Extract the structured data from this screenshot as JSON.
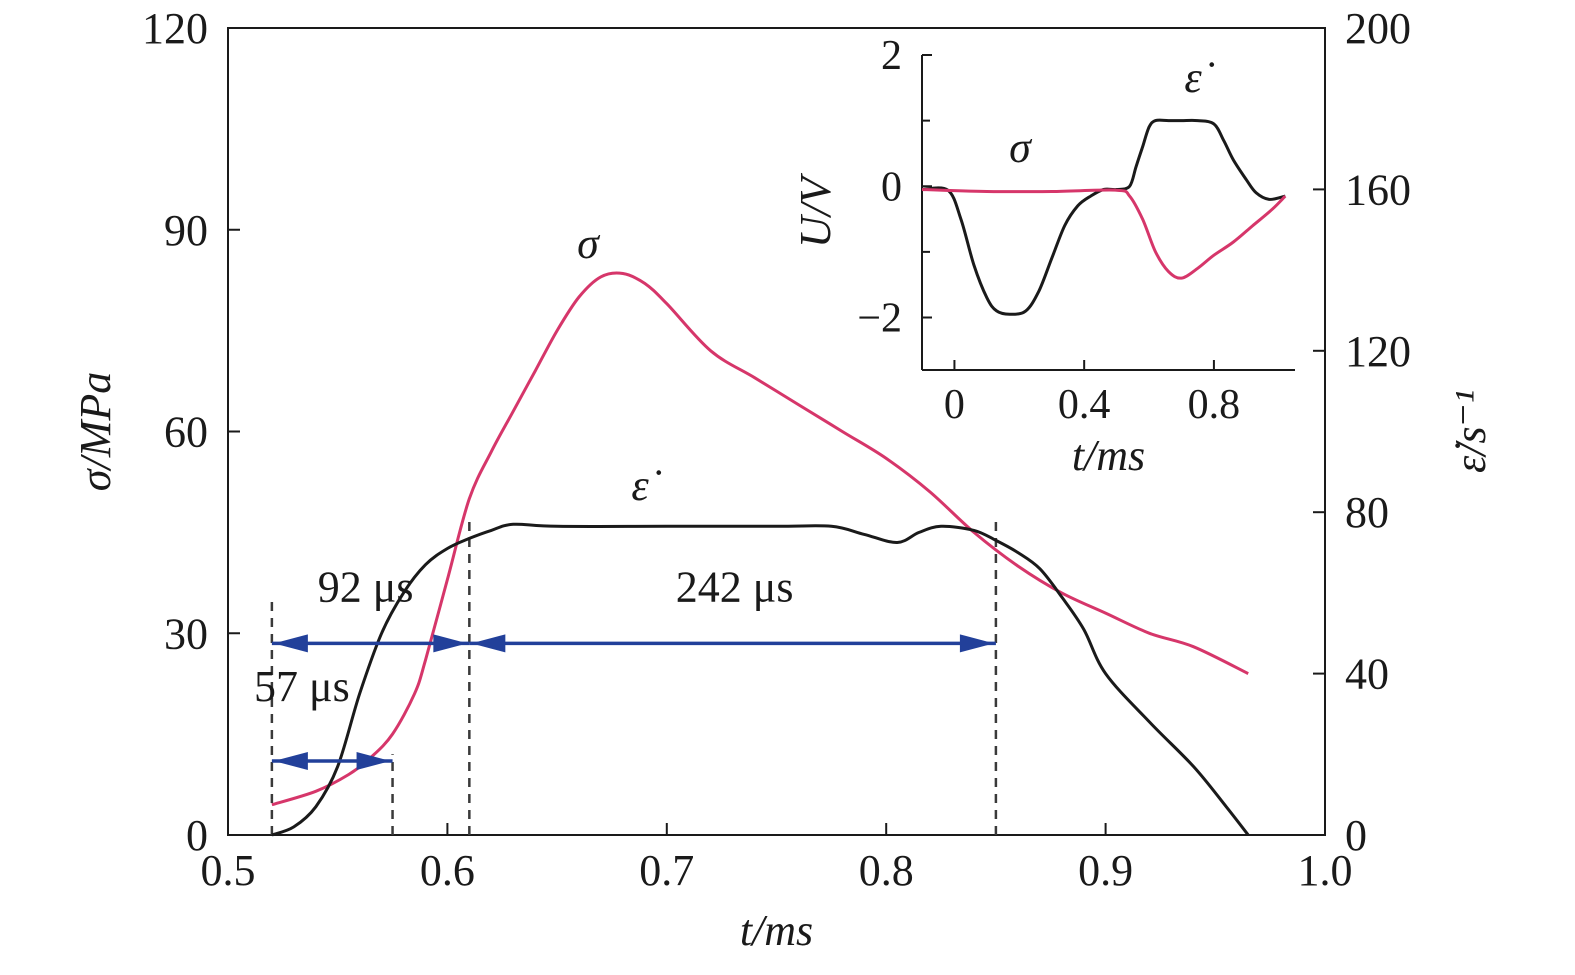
{
  "chart_data": [
    {
      "type": "line",
      "xlabel": "t/ms",
      "ylabel_left": "σ/MPa",
      "ylabel_right": "ε̇/s⁻¹",
      "xlim": [
        0.5,
        1.0
      ],
      "ylim_left": [
        0,
        120
      ],
      "ylim_right": [
        0,
        200
      ],
      "x_ticks": [
        "0.5",
        "0.6",
        "0.7",
        "0.8",
        "0.9",
        "1.0"
      ],
      "y_left_ticks": [
        "0",
        "30",
        "60",
        "90",
        "120"
      ],
      "y_right_ticks": [
        "0",
        "40",
        "80",
        "120",
        "160",
        "200"
      ],
      "colors": {
        "sigma": "#d6366a",
        "strain_rate": "#1a1a1a",
        "annotation": "#22409a",
        "guide": "#3a3a3a"
      },
      "series": [
        {
          "name": "σ",
          "axis": "left",
          "x": [
            0.52,
            0.54,
            0.555,
            0.565,
            0.575,
            0.585,
            0.59,
            0.6,
            0.61,
            0.62,
            0.63,
            0.64,
            0.65,
            0.66,
            0.67,
            0.68,
            0.69,
            0.7,
            0.72,
            0.74,
            0.76,
            0.78,
            0.8,
            0.82,
            0.84,
            0.86,
            0.88,
            0.9,
            0.92,
            0.94,
            0.965
          ],
          "values": [
            4.5,
            6.5,
            9.0,
            11.5,
            15.0,
            21.0,
            26.0,
            38.0,
            50.0,
            57.0,
            63.0,
            69.0,
            75.0,
            80.0,
            83.0,
            83.5,
            82.0,
            79.0,
            72.0,
            68.0,
            64.0,
            60.0,
            56.0,
            51.0,
            45.0,
            40.0,
            36.0,
            33.0,
            30.0,
            28.0,
            24.0
          ]
        },
        {
          "name": "ε̇",
          "axis": "right",
          "x": [
            0.52,
            0.53,
            0.54,
            0.55,
            0.56,
            0.57,
            0.58,
            0.59,
            0.6,
            0.61,
            0.62,
            0.63,
            0.65,
            0.7,
            0.75,
            0.775,
            0.79,
            0.805,
            0.815,
            0.825,
            0.84,
            0.85,
            0.86,
            0.87,
            0.88,
            0.89,
            0.9,
            0.92,
            0.94,
            0.955,
            0.965
          ],
          "values": [
            0,
            2,
            7,
            17,
            35,
            50,
            60,
            67,
            71,
            73.5,
            75.5,
            77,
            76.5,
            76.5,
            76.5,
            76.5,
            74.5,
            72.5,
            75,
            76.5,
            75.5,
            73,
            70,
            66,
            59,
            51,
            40,
            28,
            17,
            7,
            0
          ]
        }
      ],
      "annotations": [
        {
          "text": "92 μs",
          "x_start": 0.52,
          "x_end": 0.61,
          "y": 28.5
        },
        {
          "text": "242 μs",
          "x_start": 0.61,
          "x_end": 0.85,
          "y": 28.5
        },
        {
          "text": "57 μs",
          "x_start": 0.52,
          "x_end": 0.575,
          "y": 11.0
        }
      ],
      "guide_lines_x": [
        0.52,
        0.575,
        0.61,
        0.85
      ],
      "curve_labels": {
        "sigma": "σ",
        "strain_rate": "ε̇"
      }
    },
    {
      "type": "line",
      "inset": true,
      "xlabel": "t/ms",
      "ylabel": "U/V",
      "xlim": [
        -0.1,
        1.05
      ],
      "ylim": [
        -2.8,
        2.0
      ],
      "x_ticks": [
        "0",
        "0.4",
        "0.8"
      ],
      "y_ticks": [
        "2",
        "0",
        "−2"
      ],
      "series": [
        {
          "name": "ε̇",
          "x": [
            -0.1,
            -0.02,
            0.02,
            0.06,
            0.1,
            0.13,
            0.17,
            0.22,
            0.26,
            0.3,
            0.34,
            0.38,
            0.42,
            0.46,
            0.5,
            0.54,
            0.56,
            0.58,
            0.6,
            0.62,
            0.66,
            0.7,
            0.75,
            0.8,
            0.83,
            0.86,
            0.9,
            0.93,
            0.97,
            1.02
          ],
          "values": [
            -0.05,
            -0.06,
            -0.5,
            -1.2,
            -1.7,
            -1.9,
            -1.95,
            -1.9,
            -1.6,
            -1.1,
            -0.6,
            -0.3,
            -0.15,
            -0.05,
            -0.05,
            0.0,
            0.3,
            0.6,
            0.9,
            1.0,
            1.0,
            1.0,
            1.0,
            0.95,
            0.7,
            0.4,
            0.1,
            -0.1,
            -0.2,
            -0.15
          ]
        },
        {
          "name": "σ",
          "x": [
            -0.1,
            0.1,
            0.3,
            0.5,
            0.54,
            0.58,
            0.62,
            0.66,
            0.7,
            0.75,
            0.8,
            0.86,
            0.92,
            0.98,
            1.02
          ],
          "values": [
            -0.05,
            -0.08,
            -0.08,
            -0.06,
            -0.15,
            -0.5,
            -1.0,
            -1.3,
            -1.4,
            -1.25,
            -1.05,
            -0.85,
            -0.6,
            -0.35,
            -0.15
          ]
        }
      ],
      "curve_labels": {
        "sigma": "σ",
        "strain_rate": "ε̇"
      }
    }
  ]
}
